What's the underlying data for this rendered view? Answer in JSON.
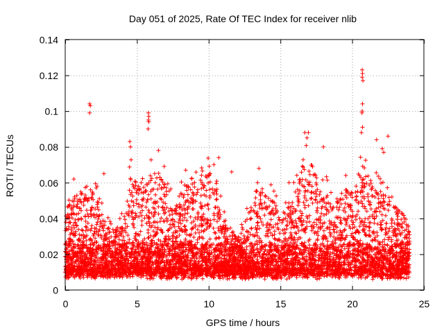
{
  "chart_data": {
    "type": "scatter",
    "title": "Day 051 of 2025, Rate Of TEC Index for receiver nlib",
    "xlabel": "GPS time / hours",
    "ylabel": "ROTI / TECUs",
    "xlim": [
      0,
      25
    ],
    "ylim": [
      0,
      0.14
    ],
    "x_ticks": [
      0,
      5,
      10,
      15,
      20,
      25
    ],
    "x_tick_labels": [
      "0",
      "5",
      "10",
      "15",
      "20",
      "25"
    ],
    "y_ticks": [
      0,
      0.02,
      0.04,
      0.06,
      0.08,
      0.1,
      0.12,
      0.14
    ],
    "y_tick_labels": [
      "0",
      "0.02",
      "0.04",
      "0.06",
      "0.08",
      "0.1",
      "0.12",
      "0.14"
    ],
    "grid": true,
    "marker": "+",
    "point_color": "#ff0000",
    "density_profile": {
      "hours": [
        0,
        0.5,
        1,
        1.5,
        2,
        2.5,
        3,
        3.5,
        4,
        4.5,
        5,
        5.5,
        6,
        6.5,
        7,
        7.5,
        8,
        8.5,
        9,
        9.5,
        10,
        10.5,
        11,
        11.5,
        12,
        12.5,
        13,
        13.5,
        14,
        14.5,
        15,
        15.5,
        16,
        16.5,
        17,
        17.5,
        18,
        18.5,
        19,
        19.5,
        20,
        20.5,
        21,
        21.5,
        22,
        22.5,
        23,
        23.5,
        24
      ],
      "typical_max_roti": [
        0.045,
        0.05,
        0.055,
        0.058,
        0.055,
        0.045,
        0.035,
        0.035,
        0.04,
        0.065,
        0.06,
        0.06,
        0.065,
        0.065,
        0.06,
        0.045,
        0.055,
        0.06,
        0.058,
        0.06,
        0.065,
        0.06,
        0.04,
        0.035,
        0.03,
        0.035,
        0.05,
        0.06,
        0.055,
        0.05,
        0.045,
        0.045,
        0.055,
        0.07,
        0.075,
        0.065,
        0.06,
        0.05,
        0.05,
        0.06,
        0.055,
        0.065,
        0.065,
        0.06,
        0.055,
        0.055,
        0.05,
        0.045,
        0.035
      ]
    },
    "outliers": [
      {
        "x": 1.7,
        "y": 0.104
      },
      {
        "x": 1.75,
        "y": 0.103
      },
      {
        "x": 1.7,
        "y": 0.099
      },
      {
        "x": 5.8,
        "y": 0.099
      },
      {
        "x": 5.82,
        "y": 0.097
      },
      {
        "x": 5.8,
        "y": 0.095
      },
      {
        "x": 5.82,
        "y": 0.094
      },
      {
        "x": 5.78,
        "y": 0.09
      },
      {
        "x": 4.5,
        "y": 0.083
      },
      {
        "x": 4.55,
        "y": 0.08
      },
      {
        "x": 16.7,
        "y": 0.088
      },
      {
        "x": 16.95,
        "y": 0.088
      },
      {
        "x": 16.85,
        "y": 0.085
      },
      {
        "x": 20.7,
        "y": 0.123
      },
      {
        "x": 20.72,
        "y": 0.121
      },
      {
        "x": 20.7,
        "y": 0.119
      },
      {
        "x": 20.75,
        "y": 0.117
      },
      {
        "x": 20.72,
        "y": 0.104
      },
      {
        "x": 20.7,
        "y": 0.1
      },
      {
        "x": 20.68,
        "y": 0.099
      },
      {
        "x": 20.72,
        "y": 0.091
      },
      {
        "x": 20.65,
        "y": 0.088
      },
      {
        "x": 21.7,
        "y": 0.084
      },
      {
        "x": 22.5,
        "y": 0.086
      },
      {
        "x": 22.1,
        "y": 0.079
      },
      {
        "x": 22.2,
        "y": 0.077
      },
      {
        "x": 6.5,
        "y": 0.078
      },
      {
        "x": 18.0,
        "y": 0.08
      },
      {
        "x": 8.4,
        "y": 0.067
      },
      {
        "x": 11.6,
        "y": 0.066
      },
      {
        "x": 13.5,
        "y": 0.068
      },
      {
        "x": 2.7,
        "y": 0.065
      },
      {
        "x": 0.6,
        "y": 0.062
      },
      {
        "x": 15.6,
        "y": 0.06
      },
      {
        "x": 10.7,
        "y": 0.074
      }
    ]
  }
}
